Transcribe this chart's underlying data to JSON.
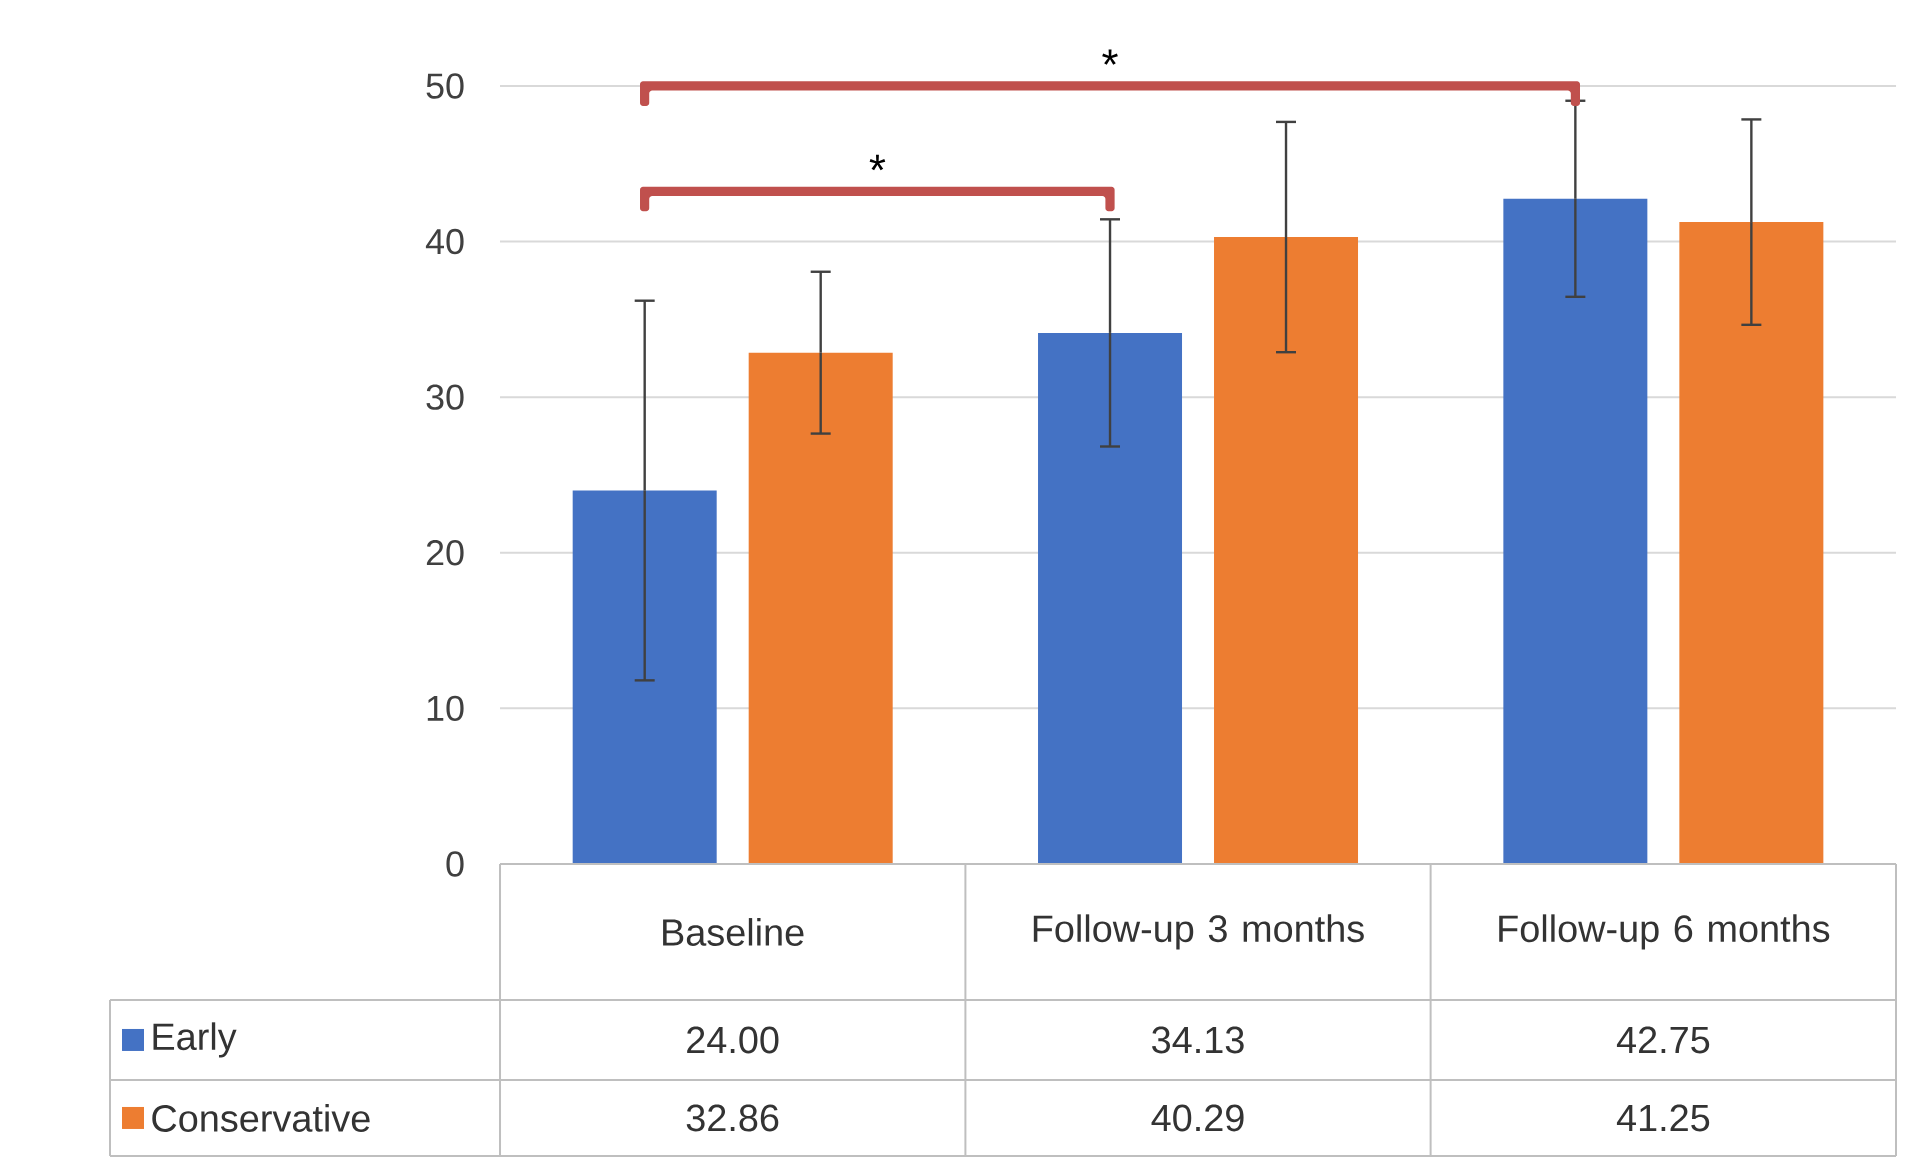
{
  "chart_data": {
    "type": "bar",
    "categories": [
      "Baseline",
      "Follow-up 3 months",
      "Follow-up 6 months"
    ],
    "series": [
      {
        "name": "Early",
        "color": "#4472c4",
        "values": [
          24.0,
          34.13,
          42.75
        ],
        "errors": [
          12.2,
          7.3,
          6.3
        ],
        "value_labels": [
          "24.00",
          "34.13",
          "42.75"
        ]
      },
      {
        "name": "Conservative",
        "color": "#ed7d31",
        "values": [
          32.86,
          40.29,
          41.25
        ],
        "errors": [
          5.2,
          7.4,
          6.6
        ],
        "value_labels": [
          "32.86",
          "40.29",
          "41.25"
        ]
      }
    ],
    "ylim": [
      0,
      50
    ],
    "yticks": [
      0,
      10,
      20,
      30,
      40,
      50
    ],
    "grid": "y",
    "legend": "bottom",
    "annotations": [
      "*",
      "*"
    ]
  }
}
